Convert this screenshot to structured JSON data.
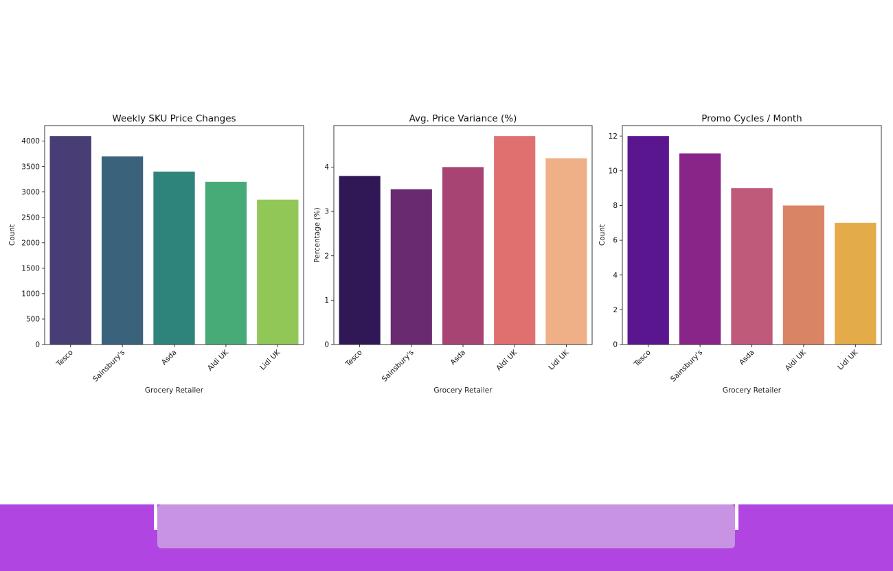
{
  "chart_data": [
    {
      "type": "bar",
      "title": "Weekly SKU Price Changes",
      "xlabel": "Grocery Retailer",
      "ylabel": "Count",
      "categories": [
        "Tesco",
        "Sainsbury's",
        "Asda",
        "Aldi UK",
        "Lidl UK"
      ],
      "values": [
        4100,
        3700,
        3400,
        3200,
        2850
      ],
      "colors": [
        "#483d74",
        "#3a627b",
        "#2e837a",
        "#46ab77",
        "#90c756"
      ],
      "ylim": [
        0,
        4305
      ],
      "yticks": [
        0,
        500,
        1000,
        1500,
        2000,
        2500,
        3000,
        3500,
        4000
      ],
      "grid": false,
      "legend": "none"
    },
    {
      "type": "bar",
      "title": "Avg. Price Variance (%)",
      "xlabel": "Grocery Retailer",
      "ylabel": "Percentage (%)",
      "categories": [
        "Tesco",
        "Sainsbury's",
        "Asda",
        "Aldi UK",
        "Lidl UK"
      ],
      "values": [
        3.8,
        3.5,
        4.0,
        4.7,
        4.2
      ],
      "colors": [
        "#2f1855",
        "#692a70",
        "#a84474",
        "#e07070",
        "#efb088"
      ],
      "ylim": [
        0,
        4.935
      ],
      "yticks": [
        0,
        1,
        2,
        3,
        4
      ],
      "grid": false,
      "legend": "none"
    },
    {
      "type": "bar",
      "title": "Promo Cycles / Month",
      "xlabel": "Grocery Retailer",
      "ylabel": "Count",
      "categories": [
        "Tesco",
        "Sainsbury's",
        "Asda",
        "Aldi UK",
        "Lidl UK"
      ],
      "values": [
        12,
        11,
        9,
        8,
        7
      ],
      "colors": [
        "#5a168f",
        "#892489",
        "#bf5a7a",
        "#d98465",
        "#e4ac48"
      ],
      "ylim": [
        0,
        12.6
      ],
      "yticks": [
        0,
        2,
        4,
        6,
        8,
        10,
        12
      ],
      "grid": false,
      "legend": "none"
    }
  ],
  "colors": {
    "bottom_bar": "#b045e2",
    "bottom_panel": "#c893e2"
  }
}
